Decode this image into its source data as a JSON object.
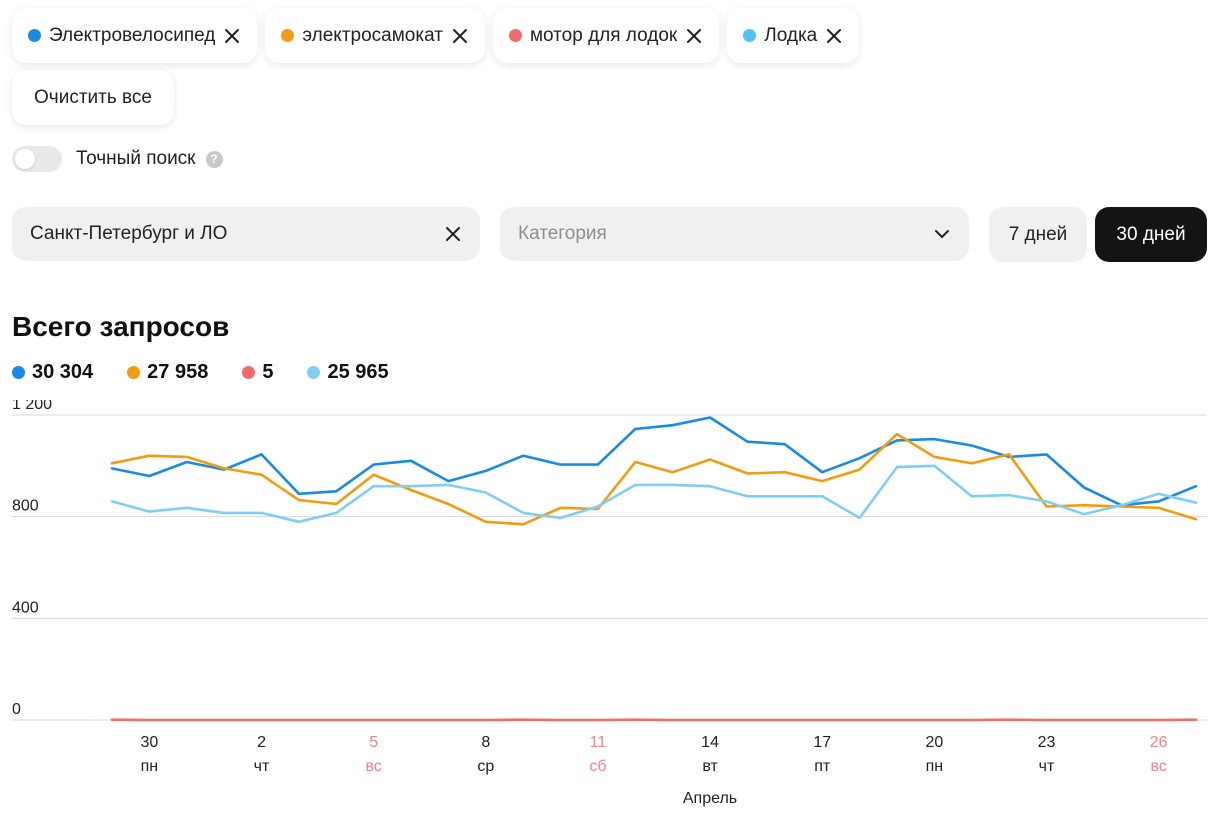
{
  "filters": {
    "chips": [
      {
        "label": "Электровелосипед",
        "color": "#1a8ae5"
      },
      {
        "label": "электросамокат",
        "color": "#f39c12"
      },
      {
        "label": "мотор для лодок",
        "color": "#f26b6b"
      },
      {
        "label": "Лодка",
        "color": "#4fc3f7"
      }
    ],
    "clear_all_label": "Очистить все",
    "exact_search_label": "Точный поиск",
    "exact_search_on": false,
    "region_value": "Санкт-Петербург и ЛО",
    "category_placeholder": "Категория",
    "period_7_label": "7 дней",
    "period_30_label": "30 дней",
    "period_selected": "30 дней"
  },
  "chart_data": {
    "type": "line",
    "title": "Всего запросов",
    "xlabel": "Апрель",
    "ylabel": "",
    "ylim": [
      0,
      1300
    ],
    "y_ticks": [
      0,
      400,
      800,
      1200
    ],
    "grid": true,
    "legend_position": "top-left",
    "x": [
      "29",
      "30",
      "31",
      "1",
      "2",
      "3",
      "4",
      "5",
      "6",
      "7",
      "8",
      "9",
      "10",
      "11",
      "12",
      "13",
      "14",
      "15",
      "16",
      "17",
      "18",
      "19",
      "20",
      "21",
      "22",
      "23",
      "24",
      "25",
      "26",
      "27"
    ],
    "x_tick_labels": [
      {
        "day": "30",
        "weekday": "пн",
        "weekend": false
      },
      {
        "day": "2",
        "weekday": "чт",
        "weekend": false
      },
      {
        "day": "5",
        "weekday": "вс",
        "weekend": true
      },
      {
        "day": "8",
        "weekday": "ср",
        "weekend": false
      },
      {
        "day": "11",
        "weekday": "сб",
        "weekend": true
      },
      {
        "day": "14",
        "weekday": "вт",
        "weekend": false
      },
      {
        "day": "17",
        "weekday": "пт",
        "weekend": false
      },
      {
        "day": "20",
        "weekday": "пн",
        "weekend": false
      },
      {
        "day": "23",
        "weekday": "чт",
        "weekend": false
      },
      {
        "day": "26",
        "weekday": "вс",
        "weekend": true
      }
    ],
    "series": [
      {
        "name": "Электровелосипед",
        "total": "30 304",
        "color": "#1a8ae5",
        "values": [
          990,
          960,
          1015,
          985,
          1045,
          890,
          900,
          1005,
          1020,
          940,
          980,
          1040,
          1005,
          1005,
          1145,
          1160,
          1190,
          1095,
          1085,
          975,
          1030,
          1100,
          1105,
          1080,
          1035,
          1045,
          915,
          845,
          860,
          920
        ]
      },
      {
        "name": "электросамокат",
        "total": "27 958",
        "color": "#f39c12",
        "values": [
          1010,
          1040,
          1035,
          990,
          965,
          865,
          850,
          965,
          905,
          850,
          780,
          770,
          835,
          830,
          1015,
          975,
          1025,
          970,
          975,
          940,
          985,
          1125,
          1035,
          1010,
          1045,
          840,
          845,
          840,
          835,
          790
        ]
      },
      {
        "name": "мотор для лодок",
        "total": "5",
        "color": "#f26b6b",
        "values": [
          1,
          0,
          0,
          0,
          0,
          0,
          0,
          0,
          0,
          0,
          0,
          1,
          0,
          0,
          1,
          0,
          0,
          0,
          0,
          0,
          0,
          0,
          0,
          0,
          1,
          0,
          0,
          0,
          0,
          1
        ]
      },
      {
        "name": "Лодка",
        "total": "25 965",
        "color": "#81cef4",
        "values": [
          860,
          820,
          835,
          815,
          815,
          780,
          815,
          920,
          920,
          925,
          895,
          815,
          795,
          840,
          925,
          925,
          920,
          880,
          880,
          880,
          795,
          995,
          1000,
          880,
          885,
          860,
          810,
          845,
          890,
          855
        ]
      }
    ]
  }
}
